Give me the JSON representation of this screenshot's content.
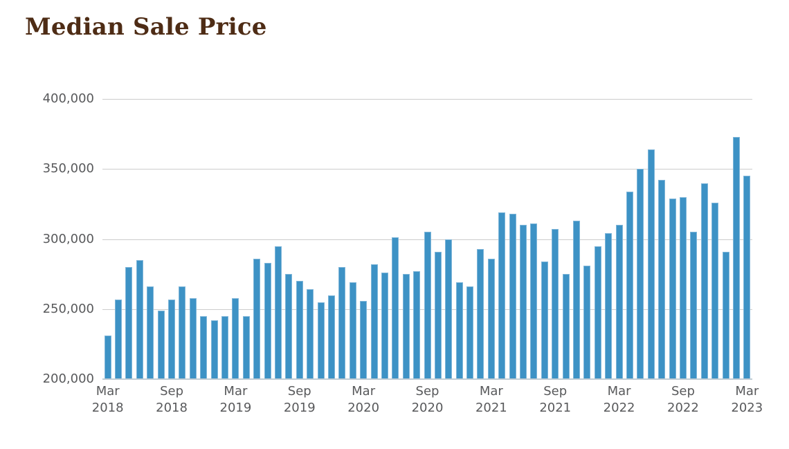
{
  "page": {
    "title": "Median Sale Price"
  },
  "chart_data": {
    "type": "bar",
    "title": "Median Sale Price",
    "xlabel": "",
    "ylabel": "",
    "ylim": [
      200000,
      400000
    ],
    "grid": true,
    "legend": "none",
    "categories": [
      "Mar 2018",
      "Apr 2018",
      "May 2018",
      "Jun 2018",
      "Jul 2018",
      "Aug 2018",
      "Sep 2018",
      "Oct 2018",
      "Nov 2018",
      "Dec 2018",
      "Jan 2019",
      "Feb 2019",
      "Mar 2019",
      "Apr 2019",
      "May 2019",
      "Jun 2019",
      "Jul 2019",
      "Aug 2019",
      "Sep 2019",
      "Oct 2019",
      "Nov 2019",
      "Dec 2019",
      "Jan 2020",
      "Feb 2020",
      "Mar 2020",
      "Apr 2020",
      "May 2020",
      "Jun 2020",
      "Jul 2020",
      "Aug 2020",
      "Sep 2020",
      "Oct 2020",
      "Nov 2020",
      "Dec 2020",
      "Jan 2021",
      "Feb 2021",
      "Mar 2021",
      "Apr 2021",
      "May 2021",
      "Jun 2021",
      "Jul 2021",
      "Aug 2021",
      "Sep 2021",
      "Oct 2021",
      "Nov 2021",
      "Dec 2021",
      "Jan 2022",
      "Feb 2022",
      "Mar 2022",
      "Apr 2022",
      "May 2022",
      "Jun 2022",
      "Jul 2022",
      "Aug 2022",
      "Sep 2022",
      "Oct 2022",
      "Nov 2022",
      "Dec 2022",
      "Jan 2023",
      "Feb 2023",
      "Mar 2023"
    ],
    "values": [
      231000,
      257000,
      280000,
      285000,
      266000,
      249000,
      257000,
      266000,
      258000,
      245000,
      242000,
      245000,
      258000,
      245000,
      286000,
      283000,
      295000,
      275000,
      270000,
      264000,
      255000,
      260000,
      280000,
      269000,
      256000,
      282000,
      276000,
      301000,
      275000,
      277000,
      305000,
      291000,
      300000,
      269000,
      266000,
      293000,
      286000,
      319000,
      318000,
      310000,
      311000,
      284000,
      307000,
      275000,
      313000,
      281000,
      295000,
      304000,
      310000,
      334000,
      350000,
      364000,
      342000,
      329000,
      330000,
      305000,
      340000,
      326000,
      291000,
      373000,
      345000
    ],
    "yticks": [
      200000,
      250000,
      300000,
      350000,
      400000
    ],
    "ytick_labels": [
      "200,000",
      "250,000",
      "300,000",
      "350,000",
      "400,000"
    ],
    "xticks": [
      {
        "index": 0,
        "month": "Mar",
        "year": "2018"
      },
      {
        "index": 6,
        "month": "Sep",
        "year": "2018"
      },
      {
        "index": 12,
        "month": "Mar",
        "year": "2019"
      },
      {
        "index": 18,
        "month": "Sep",
        "year": "2019"
      },
      {
        "index": 24,
        "month": "Mar",
        "year": "2020"
      },
      {
        "index": 30,
        "month": "Sep",
        "year": "2020"
      },
      {
        "index": 36,
        "month": "Mar",
        "year": "2021"
      },
      {
        "index": 42,
        "month": "Sep",
        "year": "2021"
      },
      {
        "index": 48,
        "month": "Mar",
        "year": "2022"
      },
      {
        "index": 54,
        "month": "Sep",
        "year": "2022"
      },
      {
        "index": 60,
        "month": "Mar",
        "year": "2023"
      }
    ],
    "colors": {
      "bar_fill": "#3d92c5",
      "bar_edge": "#7fb6d9",
      "gridline": "#cccccc",
      "baseline": "#c0ccd4",
      "title": "#4e2c15",
      "axis_label": "#58595b"
    }
  }
}
